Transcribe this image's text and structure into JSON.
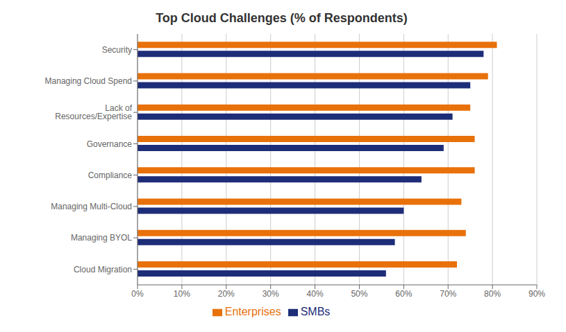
{
  "chart_data": {
    "type": "bar",
    "orientation": "horizontal",
    "title": "Top Cloud Challenges (% of Respondents)",
    "categories": [
      "Security",
      "Managing Cloud Spend",
      "Lack of Resources/Expertise",
      "Governance",
      "Compliance",
      "Managing Multi-Cloud",
      "Managing BYOL",
      "Cloud Migration"
    ],
    "series": [
      {
        "name": "Enterprises",
        "color": "#e8710a",
        "values": [
          81,
          79,
          75,
          76,
          76,
          73,
          74,
          72
        ]
      },
      {
        "name": "SMBs",
        "color": "#1e2d78",
        "values": [
          78,
          75,
          71,
          69,
          64,
          60,
          58,
          56
        ]
      }
    ],
    "xlim": [
      0,
      90
    ],
    "xticks": [
      {
        "value": 0,
        "label": "0%"
      },
      {
        "value": 10,
        "label": "10%"
      },
      {
        "value": 20,
        "label": "20%"
      },
      {
        "value": 30,
        "label": "30%"
      },
      {
        "value": 40,
        "label": "40%"
      },
      {
        "value": 50,
        "label": "50%"
      },
      {
        "value": 60,
        "label": "60%"
      },
      {
        "value": 70,
        "label": "70%"
      },
      {
        "value": 80,
        "label": "80%"
      },
      {
        "value": 90,
        "label": "90%"
      }
    ],
    "grid": true,
    "legend": "bottom"
  }
}
